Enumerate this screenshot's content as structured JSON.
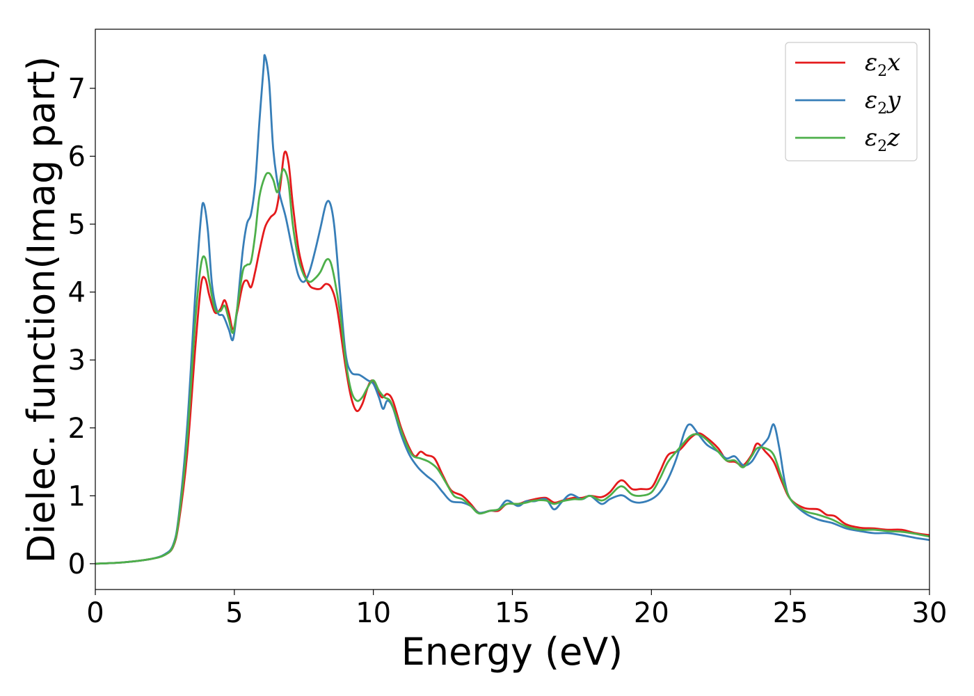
{
  "chart_data": {
    "type": "line",
    "title": "",
    "xlabel": "Energy (eV)",
    "ylabel": "Dielec. function(Imag part)",
    "xlim": [
      0,
      30
    ],
    "ylim": [
      -0.38,
      7.87
    ],
    "xticks": [
      0,
      5,
      10,
      15,
      20,
      25,
      30
    ],
    "yticks": [
      0,
      1,
      2,
      3,
      4,
      5,
      6,
      7
    ],
    "grid": false,
    "legend_position": "top-right",
    "series": [
      {
        "name": "ε2x",
        "legend": {
          "base": "ε",
          "sub": "2",
          "axis": "x"
        },
        "color": "#e41a1c",
        "points": [
          [
            0,
            0
          ],
          [
            1,
            0.02
          ],
          [
            2,
            0.07
          ],
          [
            2.5,
            0.13
          ],
          [
            2.8,
            0.25
          ],
          [
            3.0,
            0.6
          ],
          [
            3.3,
            1.6
          ],
          [
            3.6,
            3.2
          ],
          [
            3.8,
            4.1
          ],
          [
            3.95,
            4.2
          ],
          [
            4.1,
            3.95
          ],
          [
            4.3,
            3.7
          ],
          [
            4.5,
            3.75
          ],
          [
            4.65,
            3.88
          ],
          [
            4.8,
            3.7
          ],
          [
            4.95,
            3.45
          ],
          [
            5.1,
            3.7
          ],
          [
            5.3,
            4.1
          ],
          [
            5.45,
            4.17
          ],
          [
            5.6,
            4.07
          ],
          [
            5.75,
            4.3
          ],
          [
            5.9,
            4.6
          ],
          [
            6.1,
            4.95
          ],
          [
            6.3,
            5.1
          ],
          [
            6.5,
            5.2
          ],
          [
            6.65,
            5.55
          ],
          [
            6.8,
            6.05
          ],
          [
            6.95,
            5.9
          ],
          [
            7.1,
            5.3
          ],
          [
            7.3,
            4.65
          ],
          [
            7.5,
            4.3
          ],
          [
            7.7,
            4.1
          ],
          [
            7.9,
            4.05
          ],
          [
            8.1,
            4.05
          ],
          [
            8.3,
            4.12
          ],
          [
            8.5,
            4.05
          ],
          [
            8.7,
            3.75
          ],
          [
            9.0,
            2.9
          ],
          [
            9.2,
            2.45
          ],
          [
            9.4,
            2.25
          ],
          [
            9.6,
            2.35
          ],
          [
            9.8,
            2.6
          ],
          [
            9.95,
            2.7
          ],
          [
            10.1,
            2.6
          ],
          [
            10.3,
            2.45
          ],
          [
            10.5,
            2.5
          ],
          [
            10.7,
            2.4
          ],
          [
            11.0,
            2.0
          ],
          [
            11.3,
            1.7
          ],
          [
            11.5,
            1.58
          ],
          [
            11.7,
            1.65
          ],
          [
            11.9,
            1.6
          ],
          [
            12.2,
            1.55
          ],
          [
            12.5,
            1.3
          ],
          [
            12.8,
            1.08
          ],
          [
            13.2,
            1.0
          ],
          [
            13.5,
            0.88
          ],
          [
            13.8,
            0.75
          ],
          [
            14.2,
            0.78
          ],
          [
            14.5,
            0.78
          ],
          [
            14.8,
            0.88
          ],
          [
            15.2,
            0.88
          ],
          [
            15.5,
            0.92
          ],
          [
            15.8,
            0.95
          ],
          [
            16.2,
            0.97
          ],
          [
            16.5,
            0.9
          ],
          [
            16.8,
            0.93
          ],
          [
            17.2,
            0.97
          ],
          [
            17.5,
            0.97
          ],
          [
            17.8,
            1.0
          ],
          [
            18.2,
            0.98
          ],
          [
            18.5,
            1.05
          ],
          [
            18.8,
            1.2
          ],
          [
            19.0,
            1.22
          ],
          [
            19.3,
            1.1
          ],
          [
            19.6,
            1.1
          ],
          [
            20.0,
            1.12
          ],
          [
            20.3,
            1.35
          ],
          [
            20.6,
            1.6
          ],
          [
            21.0,
            1.67
          ],
          [
            21.4,
            1.85
          ],
          [
            21.7,
            1.92
          ],
          [
            22.0,
            1.85
          ],
          [
            22.4,
            1.7
          ],
          [
            22.7,
            1.52
          ],
          [
            23.0,
            1.5
          ],
          [
            23.3,
            1.45
          ],
          [
            23.6,
            1.6
          ],
          [
            23.8,
            1.77
          ],
          [
            24.1,
            1.65
          ],
          [
            24.4,
            1.5
          ],
          [
            24.7,
            1.2
          ],
          [
            25.0,
            0.95
          ],
          [
            25.5,
            0.82
          ],
          [
            26.0,
            0.8
          ],
          [
            26.3,
            0.72
          ],
          [
            26.6,
            0.7
          ],
          [
            27.0,
            0.58
          ],
          [
            27.5,
            0.53
          ],
          [
            28.0,
            0.52
          ],
          [
            28.5,
            0.5
          ],
          [
            29.0,
            0.5
          ],
          [
            29.5,
            0.45
          ],
          [
            30.0,
            0.42
          ]
        ]
      },
      {
        "name": "ε2y",
        "legend": {
          "base": "ε",
          "sub": "2",
          "axis": "y"
        },
        "color": "#377eb8",
        "points": [
          [
            0,
            0
          ],
          [
            1,
            0.02
          ],
          [
            2,
            0.07
          ],
          [
            2.5,
            0.14
          ],
          [
            2.8,
            0.28
          ],
          [
            3.0,
            0.7
          ],
          [
            3.3,
            2.0
          ],
          [
            3.6,
            4.0
          ],
          [
            3.8,
            5.1
          ],
          [
            3.9,
            5.3
          ],
          [
            4.05,
            4.9
          ],
          [
            4.2,
            4.1
          ],
          [
            4.4,
            3.7
          ],
          [
            4.6,
            3.65
          ],
          [
            4.8,
            3.45
          ],
          [
            4.95,
            3.3
          ],
          [
            5.1,
            3.75
          ],
          [
            5.3,
            4.6
          ],
          [
            5.45,
            5.0
          ],
          [
            5.6,
            5.15
          ],
          [
            5.75,
            5.6
          ],
          [
            5.9,
            6.5
          ],
          [
            6.05,
            7.3
          ],
          [
            6.1,
            7.48
          ],
          [
            6.25,
            7.1
          ],
          [
            6.4,
            6.1
          ],
          [
            6.6,
            5.5
          ],
          [
            6.85,
            5.1
          ],
          [
            7.1,
            4.6
          ],
          [
            7.3,
            4.25
          ],
          [
            7.5,
            4.15
          ],
          [
            7.7,
            4.3
          ],
          [
            7.9,
            4.6
          ],
          [
            8.1,
            4.95
          ],
          [
            8.3,
            5.3
          ],
          [
            8.45,
            5.3
          ],
          [
            8.6,
            4.95
          ],
          [
            8.8,
            4.0
          ],
          [
            9.0,
            3.1
          ],
          [
            9.2,
            2.82
          ],
          [
            9.5,
            2.78
          ],
          [
            9.8,
            2.7
          ],
          [
            10.0,
            2.65
          ],
          [
            10.2,
            2.45
          ],
          [
            10.35,
            2.28
          ],
          [
            10.5,
            2.4
          ],
          [
            10.7,
            2.3
          ],
          [
            11.0,
            1.9
          ],
          [
            11.3,
            1.6
          ],
          [
            11.6,
            1.42
          ],
          [
            11.9,
            1.3
          ],
          [
            12.2,
            1.2
          ],
          [
            12.5,
            1.05
          ],
          [
            12.8,
            0.92
          ],
          [
            13.2,
            0.9
          ],
          [
            13.5,
            0.85
          ],
          [
            13.8,
            0.75
          ],
          [
            14.2,
            0.78
          ],
          [
            14.5,
            0.8
          ],
          [
            14.8,
            0.93
          ],
          [
            15.2,
            0.85
          ],
          [
            15.5,
            0.92
          ],
          [
            15.8,
            0.92
          ],
          [
            16.2,
            0.95
          ],
          [
            16.5,
            0.8
          ],
          [
            16.8,
            0.92
          ],
          [
            17.1,
            1.02
          ],
          [
            17.5,
            0.95
          ],
          [
            17.8,
            1.0
          ],
          [
            18.2,
            0.88
          ],
          [
            18.5,
            0.95
          ],
          [
            18.8,
            1.0
          ],
          [
            19.0,
            1.0
          ],
          [
            19.3,
            0.92
          ],
          [
            19.6,
            0.9
          ],
          [
            20.0,
            0.95
          ],
          [
            20.3,
            1.05
          ],
          [
            20.6,
            1.25
          ],
          [
            20.9,
            1.55
          ],
          [
            21.2,
            1.95
          ],
          [
            21.4,
            2.05
          ],
          [
            21.7,
            1.9
          ],
          [
            22.0,
            1.75
          ],
          [
            22.4,
            1.65
          ],
          [
            22.7,
            1.55
          ],
          [
            23.0,
            1.58
          ],
          [
            23.3,
            1.45
          ],
          [
            23.6,
            1.5
          ],
          [
            23.9,
            1.7
          ],
          [
            24.2,
            1.85
          ],
          [
            24.4,
            2.05
          ],
          [
            24.6,
            1.7
          ],
          [
            24.8,
            1.2
          ],
          [
            25.0,
            0.95
          ],
          [
            25.5,
            0.75
          ],
          [
            26.0,
            0.65
          ],
          [
            26.5,
            0.6
          ],
          [
            27.0,
            0.52
          ],
          [
            27.5,
            0.48
          ],
          [
            28.0,
            0.45
          ],
          [
            28.5,
            0.45
          ],
          [
            29.0,
            0.42
          ],
          [
            29.5,
            0.38
          ],
          [
            30.0,
            0.35
          ]
        ]
      },
      {
        "name": "ε2z",
        "legend": {
          "base": "ε",
          "sub": "2",
          "axis": "z"
        },
        "color": "#4daf4a",
        "points": [
          [
            0,
            0
          ],
          [
            1,
            0.02
          ],
          [
            2,
            0.07
          ],
          [
            2.5,
            0.13
          ],
          [
            2.8,
            0.26
          ],
          [
            3.0,
            0.65
          ],
          [
            3.3,
            1.8
          ],
          [
            3.6,
            3.6
          ],
          [
            3.8,
            4.4
          ],
          [
            3.95,
            4.5
          ],
          [
            4.1,
            4.15
          ],
          [
            4.3,
            3.75
          ],
          [
            4.5,
            3.72
          ],
          [
            4.65,
            3.8
          ],
          [
            4.8,
            3.6
          ],
          [
            4.95,
            3.4
          ],
          [
            5.1,
            3.75
          ],
          [
            5.3,
            4.3
          ],
          [
            5.45,
            4.4
          ],
          [
            5.6,
            4.45
          ],
          [
            5.75,
            4.85
          ],
          [
            5.9,
            5.4
          ],
          [
            6.1,
            5.7
          ],
          [
            6.25,
            5.75
          ],
          [
            6.4,
            5.65
          ],
          [
            6.55,
            5.47
          ],
          [
            6.7,
            5.75
          ],
          [
            6.8,
            5.8
          ],
          [
            6.95,
            5.6
          ],
          [
            7.1,
            5.0
          ],
          [
            7.3,
            4.5
          ],
          [
            7.5,
            4.25
          ],
          [
            7.7,
            4.15
          ],
          [
            7.9,
            4.2
          ],
          [
            8.1,
            4.3
          ],
          [
            8.3,
            4.47
          ],
          [
            8.45,
            4.45
          ],
          [
            8.6,
            4.2
          ],
          [
            8.8,
            3.7
          ],
          [
            9.0,
            3.0
          ],
          [
            9.2,
            2.55
          ],
          [
            9.4,
            2.4
          ],
          [
            9.6,
            2.45
          ],
          [
            9.8,
            2.6
          ],
          [
            10.0,
            2.7
          ],
          [
            10.2,
            2.55
          ],
          [
            10.4,
            2.45
          ],
          [
            10.6,
            2.4
          ],
          [
            10.8,
            2.2
          ],
          [
            11.1,
            1.85
          ],
          [
            11.4,
            1.6
          ],
          [
            11.7,
            1.55
          ],
          [
            12.0,
            1.5
          ],
          [
            12.3,
            1.4
          ],
          [
            12.6,
            1.2
          ],
          [
            12.9,
            1.0
          ],
          [
            13.2,
            0.95
          ],
          [
            13.5,
            0.85
          ],
          [
            13.8,
            0.74
          ],
          [
            14.2,
            0.78
          ],
          [
            14.5,
            0.8
          ],
          [
            14.8,
            0.88
          ],
          [
            15.2,
            0.88
          ],
          [
            15.5,
            0.9
          ],
          [
            15.8,
            0.93
          ],
          [
            16.2,
            0.93
          ],
          [
            16.5,
            0.88
          ],
          [
            16.8,
            0.92
          ],
          [
            17.2,
            0.95
          ],
          [
            17.5,
            0.95
          ],
          [
            17.8,
            1.0
          ],
          [
            18.2,
            0.93
          ],
          [
            18.5,
            1.0
          ],
          [
            18.8,
            1.12
          ],
          [
            19.0,
            1.13
          ],
          [
            19.3,
            1.02
          ],
          [
            19.6,
            1.0
          ],
          [
            20.0,
            1.05
          ],
          [
            20.3,
            1.25
          ],
          [
            20.6,
            1.5
          ],
          [
            21.0,
            1.7
          ],
          [
            21.4,
            1.88
          ],
          [
            21.7,
            1.9
          ],
          [
            22.0,
            1.82
          ],
          [
            22.4,
            1.65
          ],
          [
            22.7,
            1.52
          ],
          [
            23.0,
            1.52
          ],
          [
            23.3,
            1.42
          ],
          [
            23.6,
            1.58
          ],
          [
            23.8,
            1.7
          ],
          [
            24.1,
            1.7
          ],
          [
            24.4,
            1.6
          ],
          [
            24.7,
            1.25
          ],
          [
            25.0,
            0.95
          ],
          [
            25.5,
            0.78
          ],
          [
            26.0,
            0.72
          ],
          [
            26.5,
            0.65
          ],
          [
            27.0,
            0.55
          ],
          [
            27.5,
            0.5
          ],
          [
            28.0,
            0.5
          ],
          [
            28.5,
            0.48
          ],
          [
            29.0,
            0.47
          ],
          [
            29.5,
            0.44
          ],
          [
            30.0,
            0.4
          ]
        ]
      }
    ]
  }
}
